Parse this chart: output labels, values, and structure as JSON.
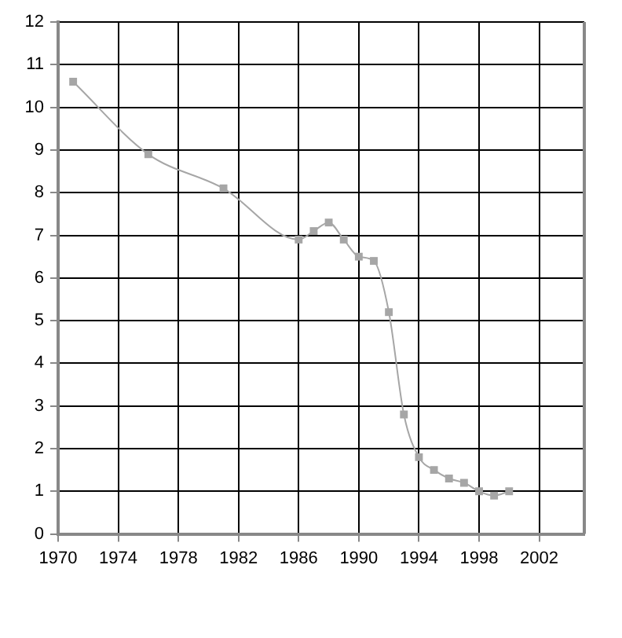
{
  "chart_data": {
    "type": "line",
    "x": [
      1971,
      1976,
      1981,
      1986,
      1987,
      1988,
      1989,
      1990,
      1991,
      1992,
      1993,
      1994,
      1995,
      1996,
      1997,
      1998,
      1999,
      2000
    ],
    "series": [
      {
        "color": "#a6a6a6",
        "values": [
          10.6,
          8.9,
          8.1,
          6.9,
          7.1,
          7.3,
          6.9,
          6.5,
          6.4,
          5.2,
          2.8,
          1.8,
          1.5,
          1.3,
          1.2,
          1.0,
          0.9,
          1.0
        ]
      }
    ],
    "xlim": [
      1970,
      2005
    ],
    "xticks": [
      1970,
      1974,
      1978,
      1982,
      1986,
      1990,
      1994,
      1998,
      2002
    ],
    "ylim": [
      0,
      12
    ],
    "yticks": [
      0,
      1,
      2,
      3,
      4,
      5,
      6,
      7,
      8,
      9,
      10,
      11,
      12
    ],
    "grid": true,
    "legend": false,
    "marker": "square",
    "line_style": "solid"
  }
}
